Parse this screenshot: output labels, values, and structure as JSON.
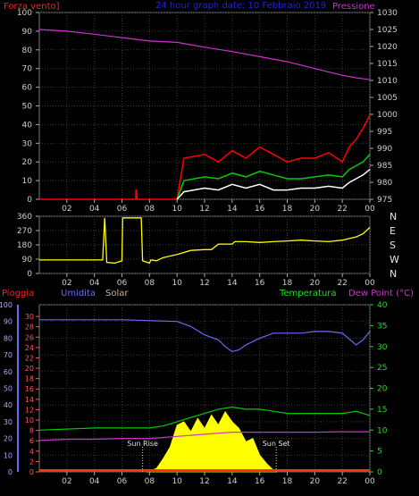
{
  "chart_data": [
    {
      "type": "line",
      "title": "24 hour graph date: 10 Febbraio 2019",
      "left_axis_label": "Forza vento]",
      "right_axis_label": "Pressione",
      "x_tick_labels": [
        "02",
        "04",
        "06",
        "08",
        "10",
        "12",
        "14",
        "16",
        "18",
        "20",
        "22",
        "00"
      ],
      "left_ticks": [
        0,
        10,
        20,
        30,
        40,
        50,
        60,
        70,
        80,
        90,
        100
      ],
      "right_ticks": [
        975,
        980,
        985,
        990,
        995,
        1000,
        1005,
        1010,
        1015,
        1020,
        1025,
        1030
      ],
      "ylim_left": [
        0,
        100
      ],
      "ylim_right": [
        975,
        1030
      ],
      "x_range_hours": [
        0,
        24
      ],
      "grid": true,
      "series": [
        {
          "name": "Pressione",
          "axis": "right",
          "color": "#cc33cc",
          "x": [
            0,
            2,
            4,
            6,
            8,
            10,
            11,
            12,
            14,
            16,
            18,
            20,
            22,
            23,
            24
          ],
          "y": [
            1025,
            1024.5,
            1023.6,
            1022.6,
            1021.6,
            1021.2,
            1020.5,
            1019.8,
            1018.5,
            1017,
            1015.5,
            1013.5,
            1011.5,
            1010.8,
            1010.2
          ]
        },
        {
          "color": "#ff0000",
          "axis": "left",
          "x": [
            0,
            7,
            7.01,
            7.05,
            7.1,
            10,
            10.5,
            12,
            13,
            14,
            15,
            16,
            17,
            18,
            19,
            20,
            21,
            22,
            22.5,
            23,
            23.5,
            24
          ],
          "y": [
            0,
            0,
            5,
            5,
            0,
            0,
            22,
            24,
            20,
            26,
            22,
            28,
            24,
            20,
            22,
            22,
            25,
            20,
            28,
            32,
            38,
            45
          ]
        },
        {
          "color": "#00cc00",
          "axis": "left",
          "x": [
            10,
            10.5,
            12,
            13,
            14,
            15,
            16,
            17,
            18,
            19,
            20,
            21,
            22,
            22.5,
            23,
            23.5,
            24
          ],
          "y": [
            0,
            10,
            12,
            11,
            14,
            12,
            15,
            13,
            11,
            11,
            12,
            13,
            12,
            16,
            18,
            20,
            24
          ]
        },
        {
          "color": "#ffffff",
          "axis": "left",
          "x": [
            10,
            10.5,
            12,
            13,
            14,
            15,
            16,
            17,
            18,
            19,
            20,
            21,
            22,
            22.5,
            23,
            23.5,
            24
          ],
          "y": [
            0,
            4,
            6,
            5,
            8,
            6,
            8,
            5,
            5,
            6,
            6,
            7,
            6,
            9,
            11,
            13,
            16
          ]
        }
      ]
    },
    {
      "type": "line",
      "x_tick_labels": [
        "02",
        "04",
        "06",
        "08",
        "10",
        "12",
        "14",
        "16",
        "18",
        "20",
        "22",
        "00"
      ],
      "left_ticks": [
        0,
        90,
        180,
        270,
        360
      ],
      "right_labels": [
        "N",
        "W",
        "S",
        "E",
        "N"
      ],
      "ylim": [
        0,
        360
      ],
      "grid": true,
      "series": [
        {
          "color": "#ffff00",
          "x": [
            0,
            4.5,
            4.6,
            4.75,
            4.9,
            5.5,
            6,
            6.05,
            6.1,
            7,
            7.4,
            7.5,
            8,
            8.1,
            8.5,
            9,
            10,
            11,
            12,
            12.5,
            13,
            14,
            14.2,
            15,
            16,
            17,
            18,
            19,
            20,
            21,
            22,
            22.5,
            23,
            23.5,
            24
          ],
          "y": [
            85,
            85,
            85,
            350,
            70,
            65,
            80,
            350,
            350,
            350,
            350,
            80,
            65,
            85,
            80,
            100,
            120,
            145,
            150,
            150,
            185,
            185,
            200,
            200,
            195,
            200,
            205,
            210,
            205,
            200,
            210,
            220,
            230,
            250,
            290
          ]
        }
      ]
    },
    {
      "type": "line",
      "left_labels": {
        "Pioggia": "Pioggia",
        "Umidita": "Umidita",
        "Solar": "Solar"
      },
      "right_labels": {
        "Temperatura": "Temperatura",
        "DewPoint": "Dew Point (°C)"
      },
      "x_tick_labels": [
        "02",
        "04",
        "06",
        "08",
        "10",
        "12",
        "14",
        "16",
        "18",
        "20",
        "22",
        "00"
      ],
      "ticks_humidity": [
        0,
        10,
        20,
        30,
        40,
        50,
        60,
        70,
        80,
        90,
        100
      ],
      "ticks_rain": [
        0,
        2,
        4,
        6,
        8,
        10,
        12,
        14,
        16,
        18,
        20,
        22,
        24,
        26,
        28,
        30
      ],
      "ticks_temp": [
        0,
        5,
        10,
        15,
        20,
        25,
        30,
        35,
        40
      ],
      "ylim_humidity": [
        0,
        100
      ],
      "ylim_temp": [
        0,
        40
      ],
      "annotations": [
        {
          "text": "Sun Rise",
          "x_hour": 7.5
        },
        {
          "text": "Sun Set",
          "x_hour": 17.2
        }
      ],
      "series": [
        {
          "name": "Umidita",
          "axis": "humidity",
          "color": "#6a6aff",
          "x": [
            0,
            6,
            10,
            11,
            12,
            13,
            13.5,
            14,
            14.5,
            15,
            16,
            17,
            18,
            19,
            20,
            21,
            22,
            23,
            23.5,
            24
          ],
          "y": [
            91,
            91,
            90,
            87,
            82,
            79,
            75,
            72,
            73,
            76,
            80,
            83,
            83,
            83,
            84,
            84,
            83,
            76,
            79,
            84
          ]
        },
        {
          "name": "Temperatura",
          "axis": "temp",
          "color": "#00cc00",
          "x": [
            0,
            4,
            8,
            9,
            10,
            11,
            12,
            13,
            14,
            15,
            16,
            17,
            18,
            19,
            20,
            21,
            22,
            23,
            24
          ],
          "y": [
            10,
            10.5,
            10.5,
            11,
            12,
            13,
            14,
            15,
            15.5,
            15,
            15,
            14.5,
            14,
            14,
            14,
            14,
            14,
            14.5,
            13.5
          ]
        },
        {
          "name": "Dew Point",
          "axis": "temp",
          "color": "#cc33cc",
          "x": [
            0,
            2,
            4,
            6,
            8,
            10,
            12,
            14,
            16,
            18,
            20,
            22,
            24
          ],
          "y": [
            7.5,
            7.8,
            7.8,
            8,
            8,
            8.5,
            9,
            9.5,
            9.5,
            9.5,
            9.5,
            9.6,
            9.6
          ]
        },
        {
          "name": "Solar",
          "axis": "humidity",
          "color": "#ffff00",
          "x": [
            7.8,
            8.5,
            9,
            9.5,
            10,
            10.5,
            11,
            11.5,
            12,
            12.5,
            13,
            13.5,
            14,
            14.5,
            15,
            15.5,
            16,
            16.5,
            17,
            17.2
          ],
          "y": [
            0,
            2,
            8,
            15,
            28,
            30,
            24,
            32,
            26,
            34,
            28,
            36,
            30,
            26,
            18,
            20,
            10,
            5,
            1,
            0
          ]
        },
        {
          "name": "Pioggia",
          "axis": "rain",
          "color": "#ff3300",
          "x": [
            0,
            24
          ],
          "y": [
            0.2,
            0.2
          ]
        }
      ]
    }
  ]
}
